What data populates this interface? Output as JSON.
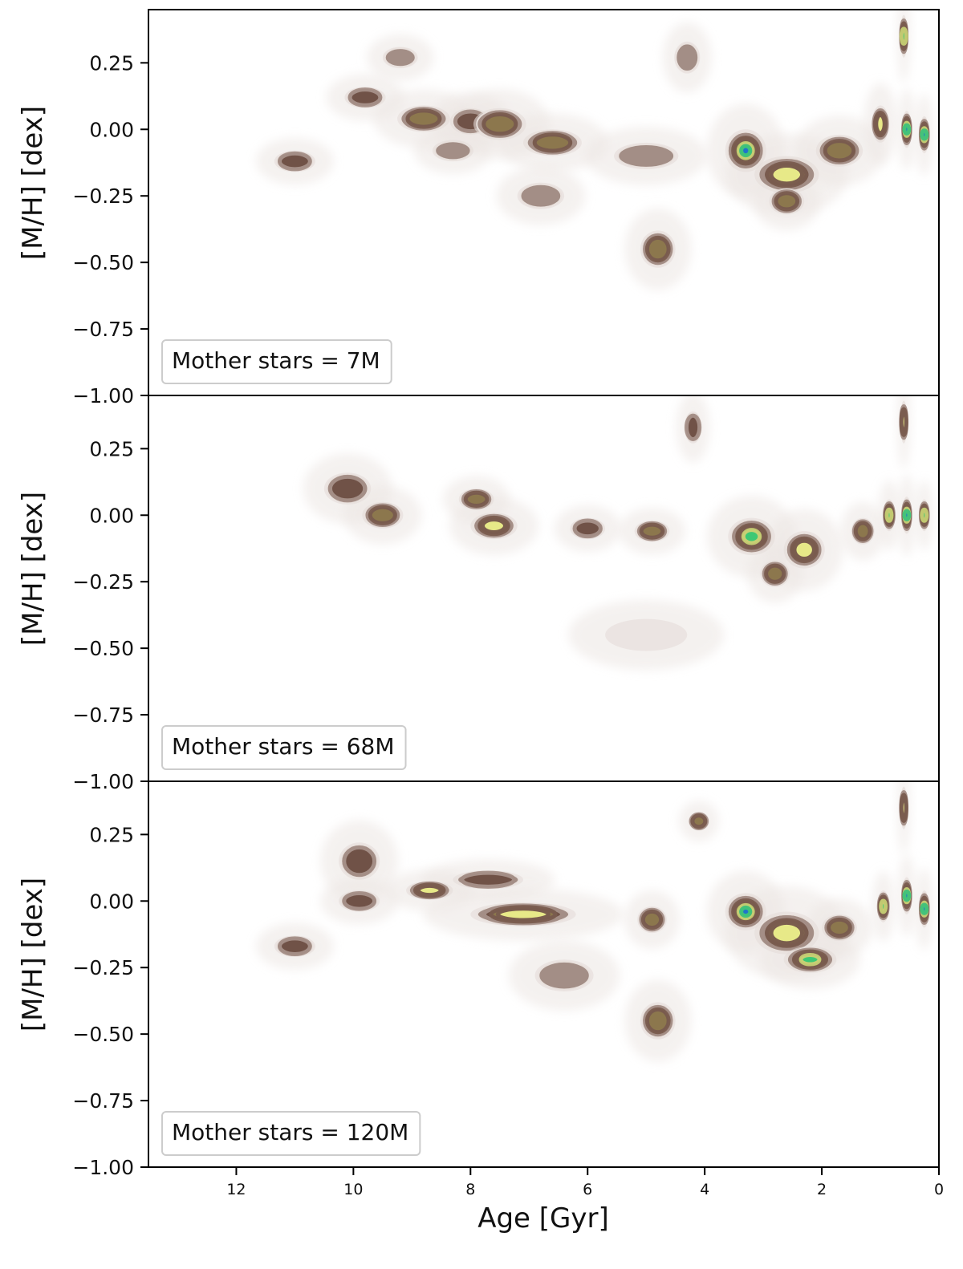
{
  "chart_data": {
    "type": "heatmap",
    "xlabel": "Age [Gyr]",
    "ylabel": "[M/H] [dex]",
    "xlim": [
      13.5,
      0
    ],
    "ylim": [
      -1.0,
      0.45
    ],
    "x_ticks": [
      12,
      10,
      8,
      6,
      4,
      2,
      0
    ],
    "y_ticks": [
      0.25,
      0.0,
      -0.25,
      -0.5,
      -0.75,
      -1.0
    ],
    "y_tick_labels": [
      "0.25",
      "0.00",
      "−0.25",
      "−0.50",
      "−0.75",
      "−1.00"
    ],
    "colormap": [
      "#ffffff",
      "#e8e2df",
      "#8c6d62",
      "#6e4f44",
      "#9d8a5a",
      "#ecf08c",
      "#35c773",
      "#1f6fd0"
    ],
    "panels": [
      {
        "label": "Mother stars = 7M",
        "blobs": [
          {
            "age": 11.0,
            "mh": -0.12,
            "w": 0.35,
            "h": 0.04,
            "level": 3
          },
          {
            "age": 9.8,
            "mh": 0.12,
            "w": 0.35,
            "h": 0.04,
            "level": 3
          },
          {
            "age": 9.2,
            "mh": 0.27,
            "w": 0.3,
            "h": 0.04,
            "level": 2
          },
          {
            "age": 8.8,
            "mh": 0.04,
            "w": 0.45,
            "h": 0.05,
            "level": 4
          },
          {
            "age": 8.0,
            "mh": 0.03,
            "w": 0.35,
            "h": 0.05,
            "level": 3
          },
          {
            "age": 7.5,
            "mh": 0.02,
            "w": 0.45,
            "h": 0.06,
            "level": 4
          },
          {
            "age": 6.6,
            "mh": -0.05,
            "w": 0.5,
            "h": 0.05,
            "level": 4
          },
          {
            "age": 8.3,
            "mh": -0.08,
            "w": 0.35,
            "h": 0.04,
            "level": 2
          },
          {
            "age": 6.8,
            "mh": -0.25,
            "w": 0.4,
            "h": 0.05,
            "level": 2
          },
          {
            "age": 4.8,
            "mh": -0.45,
            "w": 0.3,
            "h": 0.07,
            "level": 4
          },
          {
            "age": 4.3,
            "mh": 0.27,
            "w": 0.22,
            "h": 0.06,
            "level": 2
          },
          {
            "age": 5.0,
            "mh": -0.1,
            "w": 0.55,
            "h": 0.05,
            "level": 2
          },
          {
            "age": 3.3,
            "mh": -0.08,
            "w": 0.35,
            "h": 0.08,
            "level": 7
          },
          {
            "age": 2.6,
            "mh": -0.17,
            "w": 0.55,
            "h": 0.07,
            "level": 5
          },
          {
            "age": 2.6,
            "mh": -0.27,
            "w": 0.3,
            "h": 0.05,
            "level": 4
          },
          {
            "age": 1.7,
            "mh": -0.08,
            "w": 0.4,
            "h": 0.06,
            "level": 4
          },
          {
            "age": 1.0,
            "mh": 0.02,
            "w": 0.15,
            "h": 0.07,
            "level": 5
          },
          {
            "age": 0.55,
            "mh": 0.0,
            "w": 0.08,
            "h": 0.07,
            "level": 7
          },
          {
            "age": 0.25,
            "mh": -0.02,
            "w": 0.08,
            "h": 0.07,
            "level": 7
          },
          {
            "age": 0.6,
            "mh": 0.35,
            "w": 0.06,
            "h": 0.08,
            "level": 6
          }
        ]
      },
      {
        "label": "Mother stars = 68M",
        "blobs": [
          {
            "age": 10.1,
            "mh": 0.1,
            "w": 0.4,
            "h": 0.06,
            "level": 3
          },
          {
            "age": 9.5,
            "mh": 0.0,
            "w": 0.35,
            "h": 0.05,
            "level": 4
          },
          {
            "age": 7.9,
            "mh": 0.06,
            "w": 0.3,
            "h": 0.04,
            "level": 4
          },
          {
            "age": 7.6,
            "mh": -0.04,
            "w": 0.4,
            "h": 0.05,
            "level": 5
          },
          {
            "age": 6.0,
            "mh": -0.05,
            "w": 0.3,
            "h": 0.04,
            "level": 3
          },
          {
            "age": 4.9,
            "mh": -0.06,
            "w": 0.3,
            "h": 0.04,
            "level": 4
          },
          {
            "age": 4.2,
            "mh": 0.33,
            "w": 0.15,
            "h": 0.06,
            "level": 3
          },
          {
            "age": 5.0,
            "mh": -0.45,
            "w": 0.7,
            "h": 0.06,
            "level": 1
          },
          {
            "age": 3.2,
            "mh": -0.08,
            "w": 0.4,
            "h": 0.07,
            "level": 6
          },
          {
            "age": 2.8,
            "mh": -0.22,
            "w": 0.25,
            "h": 0.05,
            "level": 4
          },
          {
            "age": 2.3,
            "mh": -0.13,
            "w": 0.35,
            "h": 0.07,
            "level": 5
          },
          {
            "age": 1.3,
            "mh": -0.06,
            "w": 0.2,
            "h": 0.05,
            "level": 4
          },
          {
            "age": 0.85,
            "mh": 0.0,
            "w": 0.1,
            "h": 0.06,
            "level": 6
          },
          {
            "age": 0.55,
            "mh": 0.0,
            "w": 0.08,
            "h": 0.07,
            "level": 7
          },
          {
            "age": 0.25,
            "mh": 0.0,
            "w": 0.08,
            "h": 0.06,
            "level": 6
          },
          {
            "age": 0.6,
            "mh": 0.35,
            "w": 0.06,
            "h": 0.08,
            "level": 5
          }
        ]
      },
      {
        "label": "Mother stars = 120M",
        "blobs": [
          {
            "age": 11.0,
            "mh": -0.17,
            "w": 0.35,
            "h": 0.04,
            "level": 3
          },
          {
            "age": 9.9,
            "mh": 0.15,
            "w": 0.35,
            "h": 0.07,
            "level": 3
          },
          {
            "age": 9.9,
            "mh": 0.0,
            "w": 0.35,
            "h": 0.04,
            "level": 3
          },
          {
            "age": 8.7,
            "mh": 0.04,
            "w": 0.4,
            "h": 0.035,
            "level": 5
          },
          {
            "age": 7.7,
            "mh": 0.08,
            "w": 0.6,
            "h": 0.035,
            "level": 3
          },
          {
            "age": 7.1,
            "mh": -0.05,
            "w": 0.9,
            "h": 0.045,
            "level": 5
          },
          {
            "age": 6.4,
            "mh": -0.28,
            "w": 0.5,
            "h": 0.06,
            "level": 2
          },
          {
            "age": 4.8,
            "mh": -0.45,
            "w": 0.3,
            "h": 0.07,
            "level": 4
          },
          {
            "age": 4.9,
            "mh": -0.07,
            "w": 0.25,
            "h": 0.05,
            "level": 4
          },
          {
            "age": 4.1,
            "mh": 0.3,
            "w": 0.18,
            "h": 0.035,
            "level": 4
          },
          {
            "age": 3.3,
            "mh": -0.04,
            "w": 0.35,
            "h": 0.07,
            "level": 7
          },
          {
            "age": 2.6,
            "mh": -0.12,
            "w": 0.55,
            "h": 0.08,
            "level": 5
          },
          {
            "age": 2.2,
            "mh": -0.22,
            "w": 0.45,
            "h": 0.05,
            "level": 6
          },
          {
            "age": 1.7,
            "mh": -0.1,
            "w": 0.3,
            "h": 0.05,
            "level": 4
          },
          {
            "age": 0.95,
            "mh": -0.02,
            "w": 0.1,
            "h": 0.06,
            "level": 6
          },
          {
            "age": 0.55,
            "mh": 0.02,
            "w": 0.08,
            "h": 0.07,
            "level": 7
          },
          {
            "age": 0.25,
            "mh": -0.03,
            "w": 0.08,
            "h": 0.07,
            "level": 7
          },
          {
            "age": 0.6,
            "mh": 0.35,
            "w": 0.06,
            "h": 0.08,
            "level": 5
          }
        ]
      }
    ]
  }
}
